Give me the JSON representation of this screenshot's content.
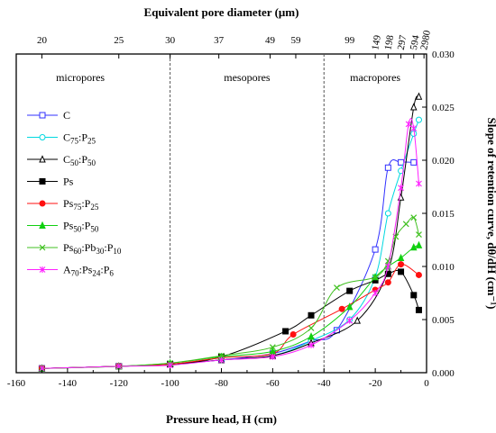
{
  "chart_data": {
    "type": "line",
    "title": "",
    "xlabel": "Pressure head, H (cm)",
    "ylabel": "Slope of retention curve, dθ/dH (cm⁻¹)",
    "top_xlabel": "Equivalent pore diameter (μm)",
    "xlim": [
      -160,
      0
    ],
    "ylim": [
      0,
      0.03
    ],
    "x_ticks": [
      "-160",
      "-140",
      "-120",
      "-100",
      "-80",
      "-60",
      "-40",
      "-20",
      "0"
    ],
    "y_ticks": [
      "0.000",
      "0.005",
      "0.010",
      "0.015",
      "0.020",
      "0.025",
      "0.030"
    ],
    "top_ticks": [
      {
        "label": "20",
        "x": -150
      },
      {
        "label": "25",
        "x": -120
      },
      {
        "label": "30",
        "x": -100
      },
      {
        "label": "37",
        "x": -81
      },
      {
        "label": "49",
        "x": -61
      },
      {
        "label": "59",
        "x": -51
      },
      {
        "label": "99",
        "x": -30
      },
      {
        "label": "149",
        "x": -20
      },
      {
        "label": "198",
        "x": -15
      },
      {
        "label": "297",
        "x": -10
      },
      {
        "label": "594",
        "x": -5
      },
      {
        "label": "2980",
        "x": -1
      }
    ],
    "regions": [
      {
        "label": "micropores",
        "x": -135
      },
      {
        "label": "mesopores",
        "x": -70
      },
      {
        "label": "macropores",
        "x": -20
      }
    ],
    "dividers": [
      -100,
      -40
    ],
    "legend_position": "left",
    "series": [
      {
        "name": "C",
        "label": {
          "base": "C",
          "parts": []
        },
        "color": "#3030ff",
        "marker": "square-open",
        "x": [
          -150,
          -120,
          -100,
          -80,
          -60,
          -45,
          -35,
          -20,
          -15,
          -10,
          -5
        ],
        "y": [
          0.0004,
          0.0006,
          0.0008,
          0.0012,
          0.0018,
          0.003,
          0.004,
          0.0116,
          0.0193,
          0.0198,
          0.0198
        ]
      },
      {
        "name": "C75:P25",
        "label": {
          "base": "C",
          "parts": [
            [
              "75",
              ":P"
            ],
            [
              "25",
              ""
            ]
          ]
        },
        "color": "#00d8e0",
        "marker": "circle-open",
        "x": [
          -150,
          -120,
          -100,
          -80,
          -60,
          -45,
          -30,
          -20,
          -15,
          -10,
          -5,
          -3
        ],
        "y": [
          0.0004,
          0.0006,
          0.0008,
          0.0012,
          0.0016,
          0.003,
          0.005,
          0.009,
          0.015,
          0.019,
          0.0225,
          0.0238
        ]
      },
      {
        "name": "C50:P50",
        "label": {
          "base": "C",
          "parts": [
            [
              "50",
              ":P"
            ],
            [
              "50",
              ""
            ]
          ]
        },
        "color": "#000000",
        "marker": "triangle-open",
        "x": [
          -150,
          -120,
          -100,
          -80,
          -60,
          -45,
          -27,
          -15,
          -10,
          -5,
          -3
        ],
        "y": [
          0.0004,
          0.0006,
          0.0008,
          0.0012,
          0.0016,
          0.0028,
          0.0049,
          0.0096,
          0.0165,
          0.025,
          0.026
        ]
      },
      {
        "name": "Ps",
        "label": {
          "base": "Ps",
          "parts": []
        },
        "color": "#000000",
        "marker": "square-filled",
        "x": [
          -150,
          -120,
          -100,
          -80,
          -55,
          -45,
          -30,
          -20,
          -15,
          -10,
          -5,
          -3
        ],
        "y": [
          0.0004,
          0.0006,
          0.0008,
          0.0015,
          0.0039,
          0.0054,
          0.0077,
          0.0087,
          0.0093,
          0.0095,
          0.0073,
          0.0059
        ]
      },
      {
        "name": "Ps75:P25",
        "label": {
          "base": "Ps",
          "parts": [
            [
              "75",
              ":P"
            ],
            [
              "25",
              ""
            ]
          ]
        },
        "color": "#ff1010",
        "marker": "circle-filled",
        "x": [
          -150,
          -120,
          -100,
          -80,
          -60,
          -52,
          -33,
          -20,
          -15,
          -10,
          -3
        ],
        "y": [
          0.0004,
          0.0006,
          0.0008,
          0.0014,
          0.0018,
          0.0036,
          0.006,
          0.0078,
          0.0085,
          0.0102,
          0.0092
        ]
      },
      {
        "name": "Ps50:P50",
        "label": {
          "base": "Ps",
          "parts": [
            [
              "50",
              ":P"
            ],
            [
              "50",
              ""
            ]
          ]
        },
        "color": "#10d010",
        "marker": "triangle-filled",
        "x": [
          -150,
          -120,
          -100,
          -80,
          -60,
          -45,
          -30,
          -20,
          -15,
          -10,
          -5,
          -3
        ],
        "y": [
          0.0004,
          0.0006,
          0.0009,
          0.0015,
          0.002,
          0.0034,
          0.0062,
          0.009,
          0.01,
          0.0108,
          0.0118,
          0.012
        ]
      },
      {
        "name": "Ps60:Pb30:P10",
        "label": {
          "base": "Ps",
          "parts": [
            [
              "60",
              ":Pb"
            ],
            [
              "30",
              ":P"
            ],
            [
              "10",
              ""
            ]
          ]
        },
        "color": "#40c020",
        "marker": "x",
        "x": [
          -150,
          -120,
          -100,
          -80,
          -60,
          -45,
          -35,
          -20,
          -15,
          -12,
          -8,
          -5,
          -3
        ],
        "y": [
          0.0004,
          0.0006,
          0.0009,
          0.0016,
          0.0024,
          0.0042,
          0.008,
          0.009,
          0.0105,
          0.0128,
          0.014,
          0.0146,
          0.013
        ]
      },
      {
        "name": "A70:Ps24:P6",
        "label": {
          "base": "A",
          "parts": [
            [
              "70",
              ":Ps"
            ],
            [
              "24",
              ":P"
            ],
            [
              "6",
              ""
            ]
          ]
        },
        "color": "#ff20ff",
        "marker": "star",
        "x": [
          -150,
          -120,
          -100,
          -80,
          -60,
          -45,
          -30,
          -20,
          -15,
          -10,
          -7,
          -5,
          -3
        ],
        "y": [
          0.0004,
          0.0006,
          0.0007,
          0.0012,
          0.0015,
          0.0026,
          0.0049,
          0.0075,
          0.01,
          0.0174,
          0.0234,
          0.023,
          0.0178
        ]
      }
    ]
  }
}
